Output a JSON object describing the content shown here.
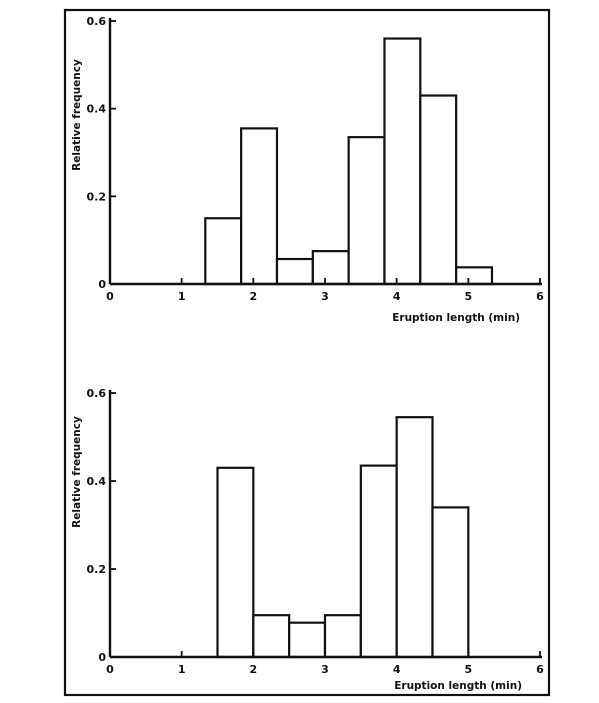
{
  "chart_data": [
    {
      "type": "bar",
      "bins": [
        {
          "start": 1.33,
          "end": 1.83,
          "value": 0.15
        },
        {
          "start": 1.83,
          "end": 2.33,
          "value": 0.355
        },
        {
          "start": 2.33,
          "end": 2.83,
          "value": 0.057
        },
        {
          "start": 2.83,
          "end": 3.33,
          "value": 0.075
        },
        {
          "start": 3.33,
          "end": 3.83,
          "value": 0.335
        },
        {
          "start": 3.83,
          "end": 4.33,
          "value": 0.56
        },
        {
          "start": 4.33,
          "end": 4.83,
          "value": 0.43
        },
        {
          "start": 4.83,
          "end": 5.33,
          "value": 0.038
        }
      ],
      "xlabel": "Eruption length (min)",
      "ylabel": "Relative frequency",
      "xlim": [
        0,
        6
      ],
      "ylim": [
        0,
        0.6
      ],
      "x_ticks": [
        "0",
        "1",
        "2",
        "3",
        "4",
        "5",
        "6"
      ],
      "y_ticks": [
        "0",
        "0.2",
        "0.4",
        "0.6"
      ],
      "grid": false
    },
    {
      "type": "bar",
      "bins": [
        {
          "start": 1.5,
          "end": 2.0,
          "value": 0.43
        },
        {
          "start": 2.0,
          "end": 2.5,
          "value": 0.095
        },
        {
          "start": 2.5,
          "end": 3.0,
          "value": 0.078
        },
        {
          "start": 3.0,
          "end": 3.5,
          "value": 0.095
        },
        {
          "start": 3.5,
          "end": 4.0,
          "value": 0.435
        },
        {
          "start": 4.0,
          "end": 4.5,
          "value": 0.545
        },
        {
          "start": 4.5,
          "end": 5.0,
          "value": 0.34
        }
      ],
      "xlabel": "Eruption length (min)",
      "ylabel": "Relative frequency",
      "xlim": [
        0,
        6
      ],
      "ylim": [
        0,
        0.6
      ],
      "x_ticks": [
        "0",
        "1",
        "2",
        "3",
        "4",
        "5",
        "6"
      ],
      "y_ticks": [
        "0",
        "0.2",
        "0.4",
        "0.6"
      ],
      "grid": false
    }
  ]
}
